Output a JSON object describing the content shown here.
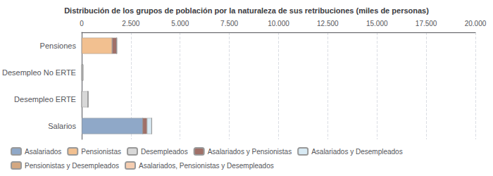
{
  "chart_data": {
    "type": "bar",
    "orientation": "horizontal",
    "stacked": true,
    "title": "Distribución de los grupos de población por la naturaleza de sus retribuciones (miles de personas)",
    "categories": [
      "Pensiones",
      "Desempleo No ERTE",
      "Desempleo ERTE",
      "Salarios"
    ],
    "series": [
      {
        "name": "Asalariados",
        "color": "#8fa8c8",
        "values": [
          0,
          0,
          0,
          3100
        ]
      },
      {
        "name": "Pensionistas",
        "color": "#f2c090",
        "values": [
          1550,
          0,
          0,
          0
        ]
      },
      {
        "name": "Desempleados",
        "color": "#d8d8d8",
        "values": [
          0,
          60,
          320,
          0
        ]
      },
      {
        "name": "Asalariados y Pensionistas",
        "color": "#a07068",
        "values": [
          230,
          0,
          0,
          220
        ]
      },
      {
        "name": "Asalariados y Desempleados",
        "color": "#d8eaf4",
        "values": [
          0,
          0,
          0,
          240
        ]
      },
      {
        "name": "Pensionistas y Desempleados",
        "color": "#d4a882",
        "values": [
          0,
          0,
          0,
          0
        ]
      },
      {
        "name": "Asalariados, Pensionistas y Desempleados",
        "color": "#f5cdb0",
        "values": [
          0,
          0,
          0,
          0
        ]
      }
    ],
    "xlim": [
      0,
      20000
    ],
    "xticks": [
      0,
      {
        "value": 2500,
        "label": "2.500"
      },
      {
        "value": 5000,
        "label": "5.000"
      },
      {
        "value": 7500,
        "label": "7.500"
      },
      {
        "value": 10000,
        "label": "10.000"
      },
      {
        "value": 12500,
        "label": "12.500"
      },
      {
        "value": 15000,
        "label": "15.000"
      },
      {
        "value": 17500,
        "label": "17.500"
      },
      {
        "value": 20000,
        "label": "20.000"
      }
    ],
    "grid": true,
    "legend": "lower left"
  }
}
